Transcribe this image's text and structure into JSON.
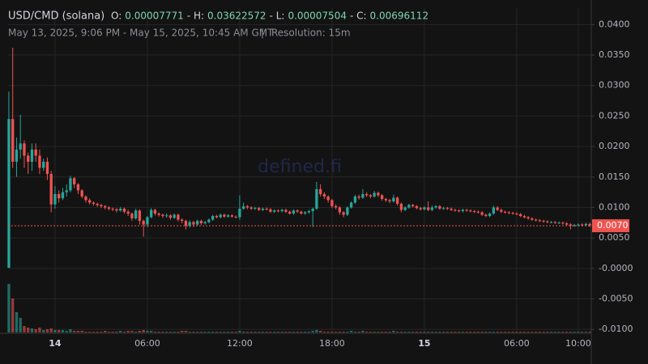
{
  "header": {
    "symbol": "USD/CMD (solana)",
    "ohlc": [
      {
        "label": "O:",
        "value": "0.00007771"
      },
      {
        "label": "- H:",
        "value": "0.03622572"
      },
      {
        "label": "- L:",
        "value": "0.00007504"
      },
      {
        "label": "- C:",
        "value": "0.00696112"
      }
    ],
    "range": "May 13, 2025, 9:06 PM - May 15, 2025, 10:45 AM GMT",
    "separator": "|",
    "resolution": "Resolution: 15m"
  },
  "watermark": "defined.fi",
  "chart_data": {
    "type": "candlestick",
    "up_color": "#26a69a",
    "down_color": "#ef5350",
    "grid": true,
    "xlim": [
      -0.2,
      151.4
    ],
    "xticks": [
      {
        "value": 12,
        "label": "14"
      },
      {
        "value": 36,
        "label": "06:00"
      },
      {
        "value": 60,
        "label": "12:00"
      },
      {
        "value": 84,
        "label": "18:00"
      },
      {
        "value": 108,
        "label": "15"
      },
      {
        "value": 132,
        "label": "06:00"
      },
      {
        "value": 148,
        "label": "10:00"
      }
    ],
    "ylim": [
      -0.0105,
      0.0427
    ],
    "yticks": [
      {
        "value": 0.04,
        "label": "0.0400"
      },
      {
        "value": 0.035,
        "label": "0.0350"
      },
      {
        "value": 0.03,
        "label": "0.0300"
      },
      {
        "value": 0.025,
        "label": "0.0250"
      },
      {
        "value": 0.02,
        "label": "0.0200"
      },
      {
        "value": 0.015,
        "label": "0.0150"
      },
      {
        "value": 0.01,
        "label": "0.0100"
      },
      {
        "value": 0.005,
        "label": "0.0050"
      },
      {
        "value": 0,
        "label": "-0.0000"
      },
      {
        "value": -0.005,
        "label": "-0.0050"
      },
      {
        "value": -0.01,
        "label": "-0.0100"
      }
    ],
    "last_price": {
      "value": 0.007,
      "label": "0.0070"
    },
    "open": [
      0.0001,
      0.0245,
      0.0175,
      0.0195,
      0.0205,
      0.0185,
      0.0175,
      0.0195,
      0.0185,
      0.0165,
      0.0175,
      0.0155,
      0.0105,
      0.0122,
      0.0115,
      0.0125,
      0.0128,
      0.0148,
      0.0138,
      0.0128,
      0.0118,
      0.0112,
      0.0108,
      0.0106,
      0.0104,
      0.0102,
      0.01,
      0.0098,
      0.0097,
      0.0095,
      0.0098,
      0.0093,
      0.009,
      0.0082,
      0.0095,
      0.0078,
      0.0072,
      0.0084,
      0.0096,
      0.009,
      0.0088,
      0.0086,
      0.0087,
      0.0083,
      0.0088,
      0.008,
      0.0078,
      0.007,
      0.0076,
      0.0072,
      0.0078,
      0.0074,
      0.0076,
      0.008,
      0.0086,
      0.0084,
      0.0088,
      0.0085,
      0.0087,
      0.0085,
      0.0084,
      0.0098,
      0.0102,
      0.01,
      0.0098,
      0.0099,
      0.0096,
      0.0098,
      0.0097,
      0.0093,
      0.0095,
      0.0094,
      0.0096,
      0.0093,
      0.009,
      0.0095,
      0.0093,
      0.009,
      0.0092,
      0.0094,
      0.0098,
      0.013,
      0.0122,
      0.0118,
      0.0112,
      0.0102,
      0.01,
      0.0092,
      0.0088,
      0.01,
      0.0108,
      0.0118,
      0.0116,
      0.0122,
      0.012,
      0.0118,
      0.0124,
      0.012,
      0.0114,
      0.0112,
      0.011,
      0.0116,
      0.0106,
      0.0096,
      0.01,
      0.0104,
      0.0102,
      0.0099,
      0.0097,
      0.01,
      0.0096,
      0.01,
      0.0102,
      0.0098,
      0.0099,
      0.0098,
      0.0096,
      0.0095,
      0.0094,
      0.0096,
      0.0095,
      0.0094,
      0.0093,
      0.0092,
      0.0088,
      0.0086,
      0.009,
      0.01,
      0.0096,
      0.0093,
      0.0092,
      0.0091,
      0.009,
      0.0089,
      0.0086,
      0.0084,
      0.0082,
      0.008,
      0.0079,
      0.0078,
      0.0077,
      0.0076,
      0.0076,
      0.0075,
      0.0075,
      0.0074,
      0.0072,
      0.007,
      0.0071,
      0.0072,
      0.0071,
      0.0073
    ],
    "high": [
      0.029,
      0.0362,
      0.0215,
      0.0252,
      0.021,
      0.019,
      0.0205,
      0.0205,
      0.0195,
      0.018,
      0.0182,
      0.016,
      0.0135,
      0.0128,
      0.0132,
      0.0138,
      0.0152,
      0.015,
      0.014,
      0.013,
      0.012,
      0.0115,
      0.011,
      0.0108,
      0.0106,
      0.0104,
      0.0102,
      0.01,
      0.0099,
      0.0101,
      0.01,
      0.0096,
      0.0092,
      0.0098,
      0.0097,
      0.008,
      0.0086,
      0.0099,
      0.0098,
      0.0092,
      0.009,
      0.009,
      0.0089,
      0.009,
      0.009,
      0.0082,
      0.008,
      0.0079,
      0.0078,
      0.008,
      0.008,
      0.0078,
      0.0082,
      0.0088,
      0.0088,
      0.009,
      0.009,
      0.0089,
      0.0089,
      0.0087,
      0.012,
      0.0108,
      0.0104,
      0.0102,
      0.0101,
      0.0101,
      0.01,
      0.01,
      0.0099,
      0.0097,
      0.0097,
      0.0098,
      0.0098,
      0.0095,
      0.0097,
      0.0097,
      0.0095,
      0.0094,
      0.0096,
      0.01,
      0.0142,
      0.0138,
      0.0125,
      0.012,
      0.0114,
      0.0105,
      0.0102,
      0.0094,
      0.0102,
      0.011,
      0.0121,
      0.0121,
      0.013,
      0.0125,
      0.0122,
      0.0127,
      0.0126,
      0.0122,
      0.0116,
      0.0114,
      0.0121,
      0.0118,
      0.0108,
      0.0102,
      0.0106,
      0.0106,
      0.0104,
      0.0101,
      0.0102,
      0.011,
      0.0103,
      0.0104,
      0.0104,
      0.0101,
      0.0101,
      0.01,
      0.0098,
      0.0097,
      0.0098,
      0.0098,
      0.0097,
      0.0096,
      0.0095,
      0.0094,
      0.009,
      0.0092,
      0.0103,
      0.0102,
      0.0098,
      0.0095,
      0.0094,
      0.0093,
      0.0092,
      0.0091,
      0.0088,
      0.0086,
      0.0084,
      0.0082,
      0.0081,
      0.008,
      0.0079,
      0.0078,
      0.0078,
      0.0077,
      0.0077,
      0.0076,
      0.0074,
      0.0073,
      0.0074,
      0.0074,
      0.0075,
      0.0075
    ],
    "low": [
      0.0001,
      0.0165,
      0.015,
      0.018,
      0.0165,
      0.0155,
      0.016,
      0.0175,
      0.0155,
      0.016,
      0.0145,
      0.0092,
      0.0098,
      0.0108,
      0.0112,
      0.0118,
      0.0125,
      0.0132,
      0.0122,
      0.0115,
      0.0108,
      0.0105,
      0.0103,
      0.0101,
      0.0099,
      0.0097,
      0.0095,
      0.0094,
      0.0092,
      0.0093,
      0.009,
      0.0086,
      0.0078,
      0.008,
      0.0072,
      0.0052,
      0.0068,
      0.0082,
      0.0087,
      0.0085,
      0.0083,
      0.0083,
      0.008,
      0.0081,
      0.0077,
      0.0074,
      0.0064,
      0.0067,
      0.0068,
      0.007,
      0.0071,
      0.0072,
      0.0074,
      0.0078,
      0.0082,
      0.0082,
      0.0083,
      0.0083,
      0.0083,
      0.0082,
      0.008,
      0.0096,
      0.0097,
      0.0096,
      0.0096,
      0.0094,
      0.0094,
      0.0095,
      0.0091,
      0.0091,
      0.0092,
      0.0092,
      0.0091,
      0.0088,
      0.0088,
      0.0091,
      0.0088,
      0.0088,
      0.009,
      0.0068,
      0.0096,
      0.0118,
      0.0114,
      0.0108,
      0.0099,
      0.0097,
      0.0088,
      0.0084,
      0.0086,
      0.0098,
      0.0106,
      0.0113,
      0.0114,
      0.0117,
      0.0115,
      0.0116,
      0.0117,
      0.0111,
      0.0109,
      0.0107,
      0.0108,
      0.0103,
      0.0092,
      0.0094,
      0.0098,
      0.01,
      0.0097,
      0.0095,
      0.0095,
      0.0094,
      0.0094,
      0.0098,
      0.0096,
      0.0096,
      0.0096,
      0.0094,
      0.0093,
      0.0092,
      0.0092,
      0.0093,
      0.0092,
      0.0091,
      0.009,
      0.0086,
      0.0084,
      0.0084,
      0.0088,
      0.0094,
      0.0091,
      0.009,
      0.0089,
      0.0088,
      0.0087,
      0.0084,
      0.0082,
      0.008,
      0.0078,
      0.0077,
      0.0076,
      0.0075,
      0.0074,
      0.0074,
      0.0073,
      0.0073,
      0.0072,
      0.007,
      0.0064,
      0.0068,
      0.0069,
      0.0069,
      0.0069,
      0.0068
    ],
    "close": [
      0.0245,
      0.0175,
      0.0195,
      0.0205,
      0.0185,
      0.0175,
      0.0195,
      0.0185,
      0.0165,
      0.0175,
      0.0155,
      0.0105,
      0.0122,
      0.0115,
      0.0125,
      0.0128,
      0.0148,
      0.0138,
      0.0128,
      0.0118,
      0.0112,
      0.0108,
      0.0106,
      0.0104,
      0.0102,
      0.01,
      0.0098,
      0.0097,
      0.0095,
      0.0098,
      0.0093,
      0.009,
      0.0082,
      0.0095,
      0.0078,
      0.0072,
      0.0084,
      0.0096,
      0.009,
      0.0088,
      0.0086,
      0.0087,
      0.0083,
      0.0088,
      0.008,
      0.0078,
      0.007,
      0.0076,
      0.0072,
      0.0078,
      0.0074,
      0.0076,
      0.008,
      0.0086,
      0.0084,
      0.0088,
      0.0085,
      0.0087,
      0.0085,
      0.0084,
      0.0098,
      0.0102,
      0.01,
      0.0098,
      0.0099,
      0.0096,
      0.0098,
      0.0097,
      0.0093,
      0.0095,
      0.0094,
      0.0096,
      0.0093,
      0.009,
      0.0095,
      0.0093,
      0.009,
      0.0092,
      0.0094,
      0.0098,
      0.013,
      0.0122,
      0.0118,
      0.0112,
      0.0102,
      0.01,
      0.0092,
      0.0088,
      0.01,
      0.0108,
      0.0118,
      0.0116,
      0.0122,
      0.012,
      0.0118,
      0.0124,
      0.012,
      0.0114,
      0.0112,
      0.011,
      0.0116,
      0.0106,
      0.0096,
      0.01,
      0.0104,
      0.0102,
      0.0099,
      0.0097,
      0.01,
      0.0096,
      0.01,
      0.0102,
      0.0098,
      0.0099,
      0.0098,
      0.0096,
      0.0095,
      0.0094,
      0.0096,
      0.0095,
      0.0094,
      0.0093,
      0.0092,
      0.0088,
      0.0086,
      0.009,
      0.01,
      0.0096,
      0.0093,
      0.0092,
      0.0091,
      0.009,
      0.0089,
      0.0086,
      0.0084,
      0.0082,
      0.008,
      0.0079,
      0.0078,
      0.0077,
      0.0076,
      0.0076,
      0.0075,
      0.0075,
      0.0074,
      0.0072,
      0.007,
      0.0071,
      0.0072,
      0.0071,
      0.0073,
      0.007
    ],
    "volume_ylim": [
      0,
      60
    ],
    "volume": [
      60,
      42,
      25,
      18,
      8,
      6,
      5,
      4,
      6,
      3,
      4,
      5,
      3,
      3,
      3,
      2,
      4,
      2,
      2,
      2,
      1,
      1,
      1,
      1,
      1,
      2,
      1,
      1,
      1,
      2,
      1,
      2,
      2,
      1,
      2,
      3,
      2,
      2,
      1,
      1,
      1,
      1,
      1,
      1,
      1,
      2,
      2,
      1,
      1,
      1,
      1,
      1,
      1,
      1,
      1,
      1,
      1,
      1,
      1,
      1,
      2,
      1,
      1,
      1,
      1,
      1,
      1,
      1,
      1,
      1,
      1,
      1,
      1,
      1,
      1,
      1,
      1,
      1,
      1,
      2,
      3,
      2,
      1,
      1,
      1,
      1,
      1,
      1,
      1,
      2,
      1,
      1,
      2,
      1,
      1,
      1,
      1,
      1,
      1,
      1,
      2,
      1,
      1,
      1,
      1,
      1,
      1,
      1,
      1,
      1,
      1,
      1,
      1,
      1,
      1,
      1,
      1,
      1,
      1,
      1,
      1,
      1,
      1,
      1,
      1,
      1,
      1,
      1,
      1,
      1,
      1,
      1,
      1,
      1,
      1,
      1,
      1,
      1,
      1,
      1,
      1,
      1,
      1,
      1,
      1,
      1,
      1,
      1,
      1,
      1,
      1,
      1
    ]
  }
}
